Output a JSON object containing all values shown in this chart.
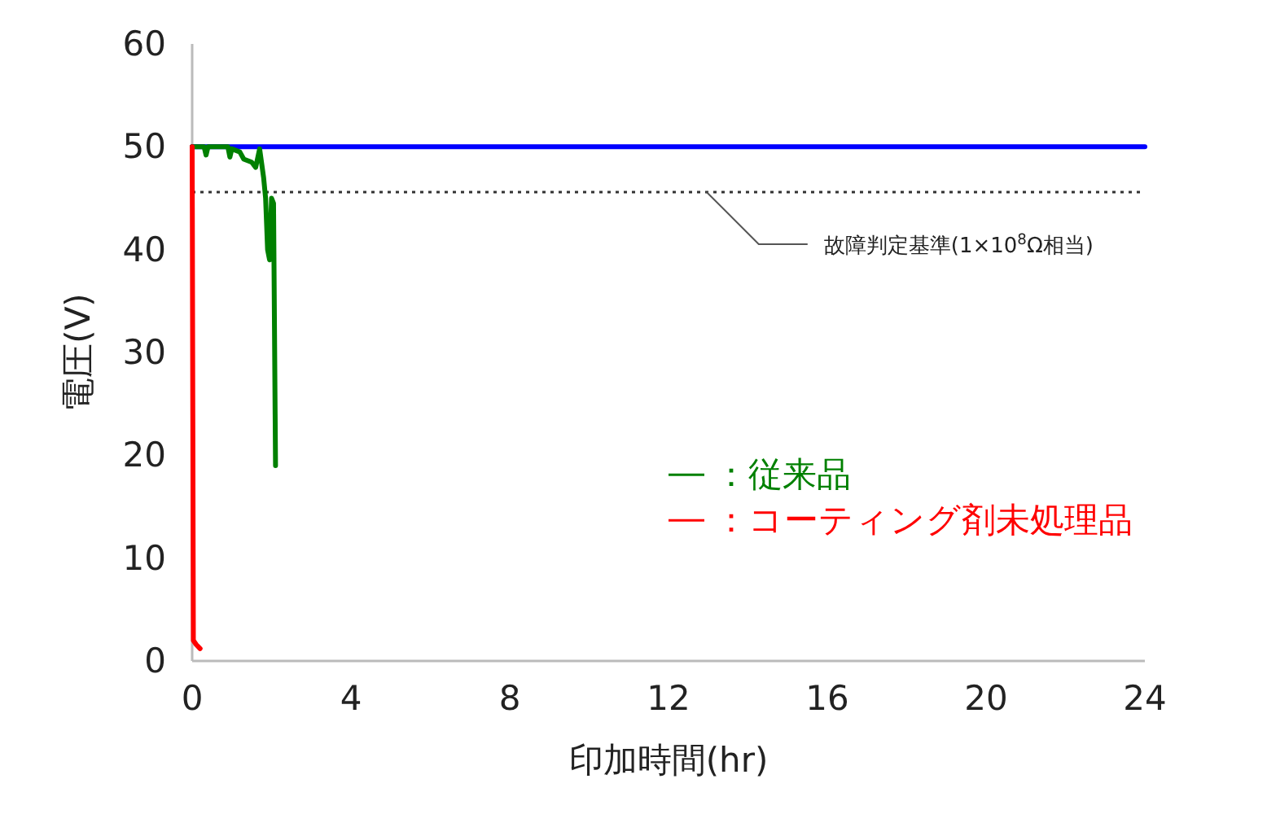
{
  "chart_data": {
    "type": "line",
    "xlabel": "印加時間(hr)",
    "ylabel": "電圧(V)",
    "xlim": [
      0,
      24
    ],
    "xticks": [
      0,
      4,
      8,
      12,
      16,
      20,
      24
    ],
    "ylim": [
      0,
      60
    ],
    "yticks": [
      0,
      10,
      20,
      30,
      40,
      50,
      60
    ],
    "grid": false,
    "legend": "right",
    "marker": "none",
    "line_style": "solid",
    "series": [
      {
        "color": "#0000ff",
        "x": [
          0,
          24
        ],
        "values": [
          50,
          50
        ]
      },
      {
        "name": "：従来品",
        "color": "#008000",
        "x": [
          0,
          0.3,
          0.35,
          0.4,
          0.9,
          0.95,
          1.0,
          1.2,
          1.3,
          1.5,
          1.6,
          1.7,
          1.8,
          1.85,
          1.9,
          1.95,
          2.0,
          2.05,
          2.1
        ],
        "values": [
          50,
          50,
          49.2,
          50,
          50,
          49,
          49.8,
          49.5,
          48.8,
          48.5,
          48,
          49.8,
          47,
          45,
          40,
          39,
          45,
          44.5,
          19
        ]
      },
      {
        "name": "：コーティング剤未処理品",
        "color": "#ff0000",
        "x": [
          0,
          0.03,
          0.1,
          0.2
        ],
        "values": [
          50,
          2,
          1.6,
          1.2
        ]
      }
    ],
    "ref_lines": [
      {
        "axis": "y",
        "value": 45.6,
        "label": "故障判定基準(1×10$^{8}$Ω相当)",
        "color": "#333333",
        "line_style": "dotted"
      }
    ]
  }
}
